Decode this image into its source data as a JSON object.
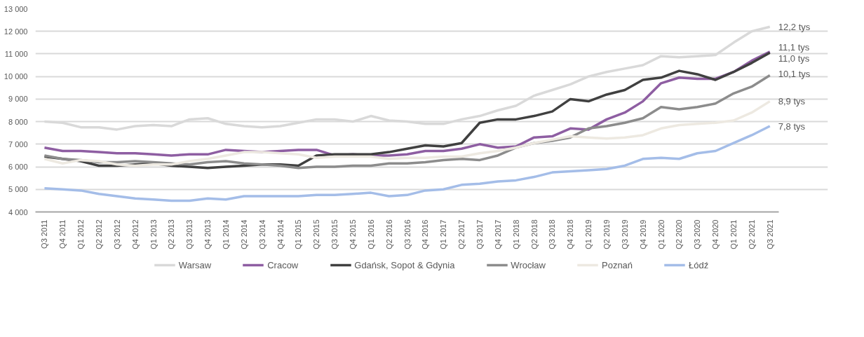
{
  "chart_data": {
    "type": "line",
    "categories": [
      "Q3 2011",
      "Q4 2011",
      "Q1 2012",
      "Q2 2012",
      "Q3 2012",
      "Q4 2012",
      "Q1 2013",
      "Q2 2013",
      "Q3 2013",
      "Q4 2013",
      "Q1 2014",
      "Q2 2014",
      "Q3 2014",
      "Q4 2014",
      "Q1 2015",
      "Q2 2015",
      "Q3 2015",
      "Q4 2015",
      "Q1 2016",
      "Q2 2016",
      "Q3 2016",
      "Q4 2016",
      "Q1 2017",
      "Q2 2017",
      "Q3 2017",
      "Q4 2017",
      "Q1 2018",
      "Q2 2018",
      "Q3 2018",
      "Q4 2018",
      "Q1 2019",
      "Q2 2019",
      "Q3 2019",
      "Q4 2019",
      "Q1 2020",
      "Q2 2020",
      "Q3 2020",
      "Q4 2020",
      "Q1 2021",
      "Q2 2021",
      "Q3 2021"
    ],
    "series": [
      {
        "name": "Warsaw",
        "color": "#d9d9d9",
        "values": [
          8000,
          7950,
          7750,
          7750,
          7650,
          7800,
          7850,
          7800,
          8100,
          8150,
          7900,
          7800,
          7750,
          7800,
          7950,
          8100,
          8100,
          8000,
          8250,
          8050,
          8000,
          7900,
          7900,
          8100,
          8250,
          8500,
          8700,
          9150,
          9400,
          9650,
          10000,
          10200,
          10350,
          10500,
          10900,
          10850,
          10900,
          10950,
          11500,
          12000,
          12200
        ]
      },
      {
        "name": "Cracow",
        "color": "#8e5ea2",
        "values": [
          6850,
          6700,
          6700,
          6650,
          6600,
          6600,
          6550,
          6500,
          6550,
          6550,
          6750,
          6700,
          6650,
          6700,
          6750,
          6750,
          6500,
          6550,
          6500,
          6500,
          6550,
          6700,
          6700,
          6800,
          7000,
          6850,
          6900,
          7300,
          7350,
          7700,
          7650,
          8100,
          8400,
          8900,
          9700,
          9950,
          9900,
          9900,
          10200,
          10700,
          11100
        ]
      },
      {
        "name": "Gdańsk, Sopot & Gdynia",
        "color": "#404040",
        "values": [
          6450,
          6350,
          6250,
          6050,
          6050,
          6100,
          6150,
          6050,
          6000,
          5950,
          6000,
          6050,
          6100,
          6100,
          6050,
          6500,
          6550,
          6550,
          6550,
          6650,
          6800,
          6950,
          6900,
          7050,
          7950,
          8100,
          8100,
          8250,
          8450,
          9000,
          8900,
          9200,
          9400,
          9850,
          9950,
          10250,
          10100,
          9850,
          10200,
          10600,
          11050
        ]
      },
      {
        "name": "Wrocław",
        "color": "#8c8c8c",
        "values": [
          6500,
          6350,
          6300,
          6200,
          6200,
          6250,
          6200,
          6150,
          6100,
          6200,
          6250,
          6150,
          6100,
          6050,
          5950,
          6000,
          6000,
          6050,
          6050,
          6150,
          6150,
          6200,
          6300,
          6350,
          6300,
          6500,
          6850,
          7050,
          7150,
          7300,
          7700,
          7800,
          7950,
          8150,
          8650,
          8550,
          8650,
          8800,
          9250,
          9550,
          10050
        ]
      },
      {
        "name": "Poznań",
        "color": "#ede9e1",
        "values": [
          6350,
          6150,
          6300,
          6250,
          6100,
          6050,
          6100,
          6100,
          6250,
          6350,
          6500,
          6650,
          6650,
          6600,
          6550,
          6400,
          6450,
          6450,
          6450,
          6350,
          6400,
          6400,
          6450,
          6450,
          6600,
          6700,
          6850,
          7050,
          7200,
          7350,
          7300,
          7250,
          7300,
          7400,
          7700,
          7850,
          7900,
          7950,
          8050,
          8400,
          8900
        ]
      },
      {
        "name": "Łódź",
        "color": "#a4bde8",
        "values": [
          5050,
          5000,
          4950,
          4800,
          4700,
          4600,
          4550,
          4500,
          4500,
          4600,
          4550,
          4700,
          4700,
          4700,
          4700,
          4750,
          4750,
          4800,
          4850,
          4700,
          4750,
          4950,
          5000,
          5200,
          5250,
          5350,
          5400,
          5550,
          5750,
          5800,
          5850,
          5900,
          6050,
          6350,
          6400,
          6350,
          6600,
          6700,
          7050,
          7400,
          7800
        ]
      }
    ],
    "ylim": [
      4000,
      13000
    ],
    "yticks": [
      {
        "value": 4000,
        "label": "4 000"
      },
      {
        "value": 5000,
        "label": "5 000"
      },
      {
        "value": 6000,
        "label": "6 000"
      },
      {
        "value": 7000,
        "label": "7 000"
      },
      {
        "value": 8000,
        "label": "8 000"
      },
      {
        "value": 9000,
        "label": "9 000"
      },
      {
        "value": 10000,
        "label": "10 000"
      },
      {
        "value": 11000,
        "label": "11 000"
      },
      {
        "value": 12000,
        "label": "12 000"
      },
      {
        "value": 13000,
        "label": "13 000"
      }
    ],
    "annotations": [
      {
        "text": "12,2 tys",
        "x": "Q3 2021",
        "y": 12200
      },
      {
        "text": "11,1 tys",
        "x": "Q3 2021",
        "y": 11100
      },
      {
        "text": "11,0 tys",
        "x": "Q3 2021",
        "y": 11000
      },
      {
        "text": "10,1 tys",
        "x": "Q3 2021",
        "y": 10100
      },
      {
        "text": "8,9 tys",
        "x": "Q3 2021",
        "y": 8900
      },
      {
        "text": "7,8 tys",
        "x": "Q3 2021",
        "y": 7800
      }
    ],
    "grid": "y",
    "legend": "bottom",
    "marker": "none",
    "line_style": "solid"
  }
}
